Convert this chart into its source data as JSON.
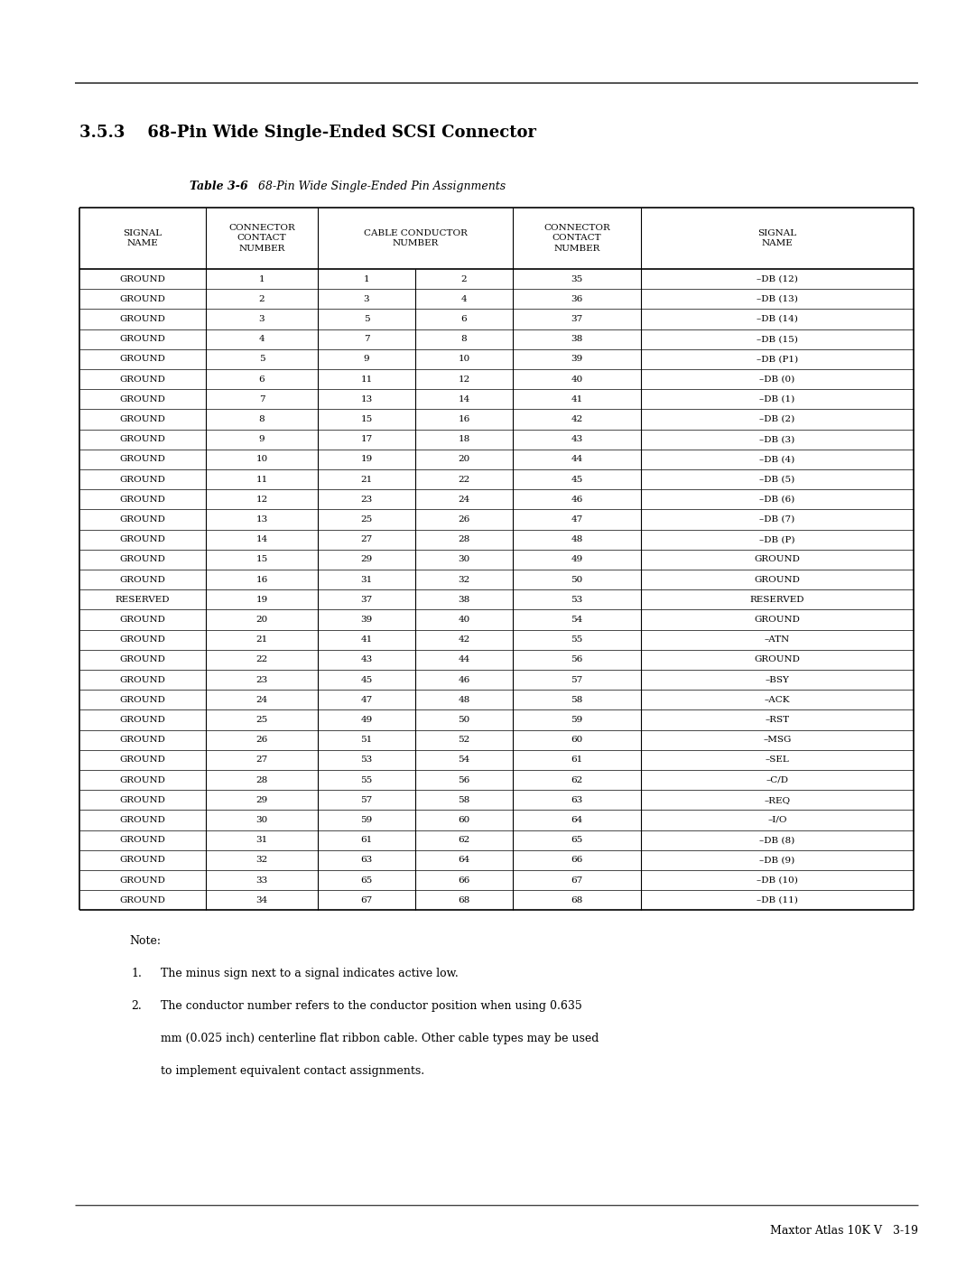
{
  "page_title_num": "3.5.3",
  "page_title_text": "68-Pin Wide Single-Ended SCSI Connector",
  "table_bold_title": "Table 3-6",
  "table_title_rest": "  68-Pin Wide Single-Ended Pin Assignments",
  "header_cols": [
    "SIGNAL\nNAME",
    "CONNECTOR\nCONTACT\nNUMBER",
    "CABLE CONDUCTOR\nNUMBER",
    "CONNECTOR\nCONTACT\nNUMBER",
    "SIGNAL\nNAME"
  ],
  "rows": [
    [
      "GROUND",
      "1",
      "1",
      "2",
      "35",
      "–DB (12)"
    ],
    [
      "GROUND",
      "2",
      "3",
      "4",
      "36",
      "–DB (13)"
    ],
    [
      "GROUND",
      "3",
      "5",
      "6",
      "37",
      "–DB (14)"
    ],
    [
      "GROUND",
      "4",
      "7",
      "8",
      "38",
      "–DB (15)"
    ],
    [
      "GROUND",
      "5",
      "9",
      "10",
      "39",
      "–DB (P1)"
    ],
    [
      "GROUND",
      "6",
      "11",
      "12",
      "40",
      "–DB (0)"
    ],
    [
      "GROUND",
      "7",
      "13",
      "14",
      "41",
      "–DB (1)"
    ],
    [
      "GROUND",
      "8",
      "15",
      "16",
      "42",
      "–DB (2)"
    ],
    [
      "GROUND",
      "9",
      "17",
      "18",
      "43",
      "–DB (3)"
    ],
    [
      "GROUND",
      "10",
      "19",
      "20",
      "44",
      "–DB (4)"
    ],
    [
      "GROUND",
      "11",
      "21",
      "22",
      "45",
      "–DB (5)"
    ],
    [
      "GROUND",
      "12",
      "23",
      "24",
      "46",
      "–DB (6)"
    ],
    [
      "GROUND",
      "13",
      "25",
      "26",
      "47",
      "–DB (7)"
    ],
    [
      "GROUND",
      "14",
      "27",
      "28",
      "48",
      "–DB (P)"
    ],
    [
      "GROUND",
      "15",
      "29",
      "30",
      "49",
      "GROUND"
    ],
    [
      "GROUND",
      "16",
      "31",
      "32",
      "50",
      "GROUND"
    ],
    [
      "RESERVED",
      "19",
      "37",
      "38",
      "53",
      "RESERVED"
    ],
    [
      "GROUND",
      "20",
      "39",
      "40",
      "54",
      "GROUND"
    ],
    [
      "GROUND",
      "21",
      "41",
      "42",
      "55",
      "–ATN"
    ],
    [
      "GROUND",
      "22",
      "43",
      "44",
      "56",
      "GROUND"
    ],
    [
      "GROUND",
      "23",
      "45",
      "46",
      "57",
      "–BSY"
    ],
    [
      "GROUND",
      "24",
      "47",
      "48",
      "58",
      "–ACK"
    ],
    [
      "GROUND",
      "25",
      "49",
      "50",
      "59",
      "–RST"
    ],
    [
      "GROUND",
      "26",
      "51",
      "52",
      "60",
      "–MSG"
    ],
    [
      "GROUND",
      "27",
      "53",
      "54",
      "61",
      "–SEL"
    ],
    [
      "GROUND",
      "28",
      "55",
      "56",
      "62",
      "–C/D"
    ],
    [
      "GROUND",
      "29",
      "57",
      "58",
      "63",
      "–REQ"
    ],
    [
      "GROUND",
      "30",
      "59",
      "60",
      "64",
      "–I/O"
    ],
    [
      "GROUND",
      "31",
      "61",
      "62",
      "65",
      "–DB (8)"
    ],
    [
      "GROUND",
      "32",
      "63",
      "64",
      "66",
      "–DB (9)"
    ],
    [
      "GROUND",
      "33",
      "65",
      "66",
      "67",
      "–DB (10)"
    ],
    [
      "GROUND",
      "34",
      "67",
      "68",
      "68",
      "–DB (11)"
    ]
  ],
  "note_label": "Note:",
  "note_1": "The minus sign next to a signal indicates active low.",
  "note_2_line1": "The conductor number refers to the conductor position when using 0.635",
  "note_2_line2": "mm (0.025 inch) centerline flat ribbon cable. Other cable types may be used",
  "note_2_line3": "to implement equivalent contact assignments.",
  "footer_line": "Maxtor Atlas 10K V   3-19",
  "bg_color": "#ffffff",
  "text_color": "#000000"
}
